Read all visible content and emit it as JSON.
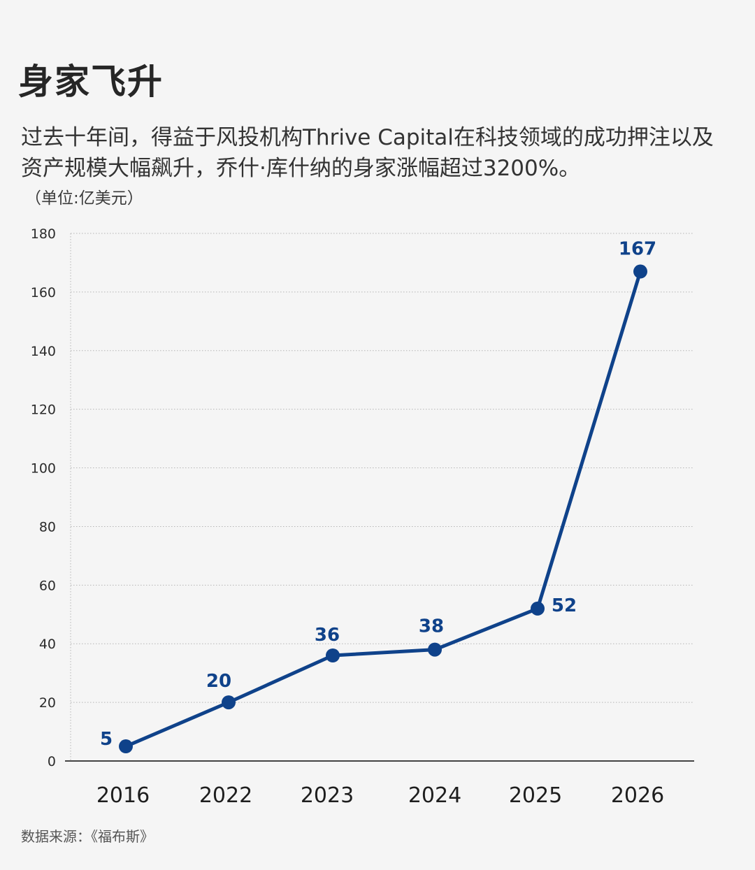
{
  "title": "身家飞升",
  "subtitle": "过去十年间，得益于风投机构Thrive Capital在科技领域的成功押注以及资产规模大幅飙升，乔什·库什纳的身家涨幅超过3200%。",
  "unit": "（单位:亿美元）",
  "source": "数据来源：《福布斯》",
  "colors": {
    "line": "#0f428a",
    "background": "#f5f5f5",
    "grid": "#b5b5b5",
    "axis": "#444444"
  },
  "chart_data": {
    "type": "line",
    "categories": [
      "2016",
      "2022",
      "2023",
      "2024",
      "2025",
      "2026"
    ],
    "series": [
      {
        "values": [
          5,
          20,
          36,
          38,
          52,
          167
        ]
      }
    ],
    "data_labels": [
      "5",
      "20",
      "36",
      "38",
      "52",
      "167"
    ],
    "ylim": [
      0,
      180
    ],
    "yticks": [
      0,
      20,
      40,
      60,
      80,
      100,
      120,
      140,
      160,
      180
    ],
    "grid": true,
    "grid_style": "dotted",
    "xlabel": "",
    "ylabel": ""
  }
}
